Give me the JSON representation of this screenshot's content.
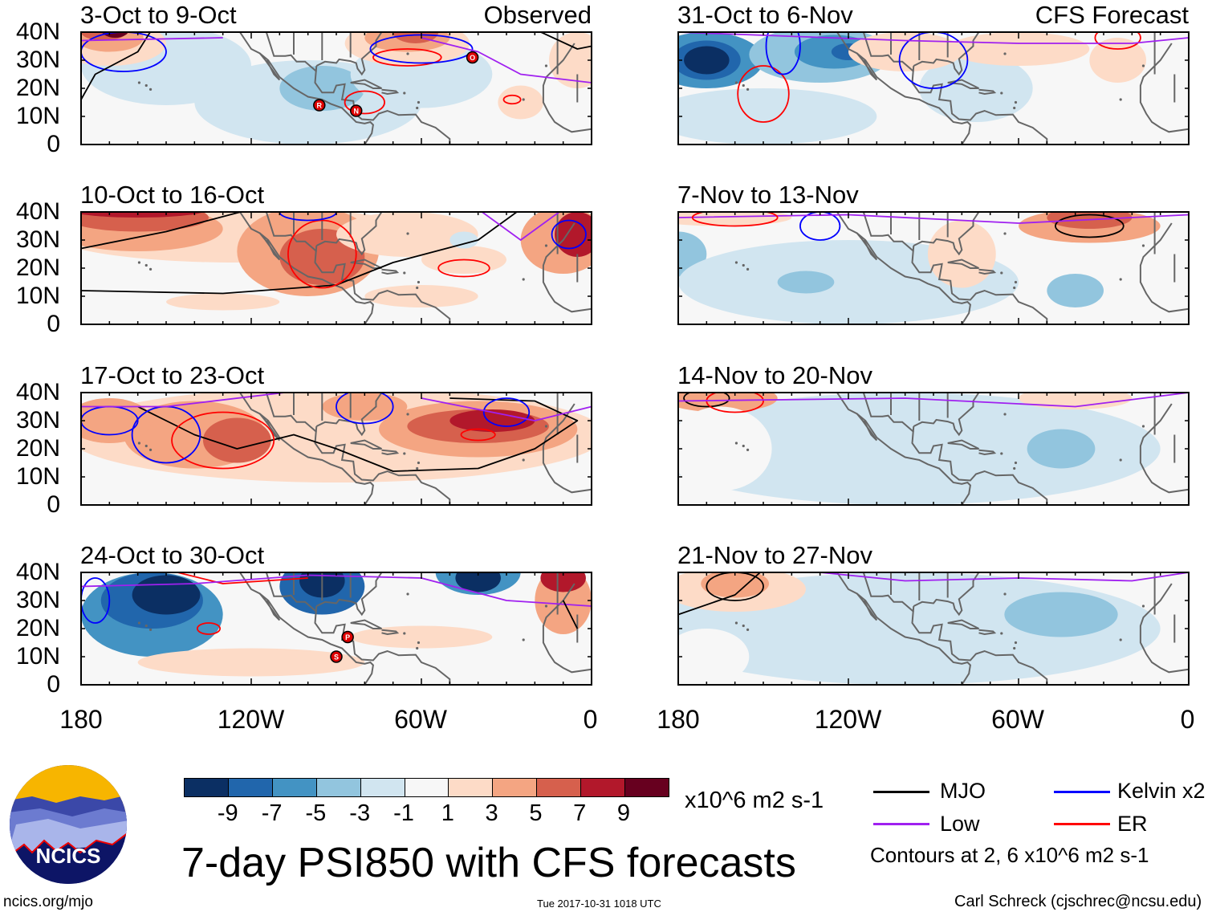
{
  "panels": [
    {
      "title": "3-Oct to 9-Oct",
      "label": "Observed",
      "storms": [
        "R",
        "N",
        "O"
      ]
    },
    {
      "title": "31-Oct to 6-Nov",
      "label": "CFS Forecast",
      "storms": []
    },
    {
      "title": "10-Oct to 16-Oct",
      "label": "",
      "storms": []
    },
    {
      "title": "7-Nov to 13-Nov",
      "label": "",
      "storms": []
    },
    {
      "title": "17-Oct to 23-Oct",
      "label": "",
      "storms": []
    },
    {
      "title": "14-Nov to 20-Nov",
      "label": "",
      "storms": []
    },
    {
      "title": "24-Oct to 30-Oct",
      "label": "",
      "storms": [
        "P",
        "S"
      ]
    },
    {
      "title": "21-Nov to 27-Nov",
      "label": "",
      "storms": []
    }
  ],
  "y_ticks": [
    "40N",
    "30N",
    "20N",
    "10N",
    "0"
  ],
  "x_ticks": [
    "180",
    "120W",
    "60W",
    "0"
  ],
  "colorbar": {
    "colors": [
      "#0b2f63",
      "#2166ac",
      "#4393c3",
      "#92c5de",
      "#d1e5f0",
      "#f7f7f7",
      "#fddbc7",
      "#f4a582",
      "#d6604d",
      "#b2182b",
      "#67001f"
    ],
    "labels": [
      "-9",
      "-7",
      "-5",
      "-3",
      "-1",
      "1",
      "3",
      "5",
      "7",
      "9"
    ],
    "units": "x10^6 m2 s-1"
  },
  "legend": {
    "items": [
      {
        "label": "MJO",
        "color": "#000000"
      },
      {
        "label": "Kelvin x2",
        "color": "#0000ff"
      },
      {
        "label": "Low",
        "color": "#a020f0"
      },
      {
        "label": "ER",
        "color": "#ff0000"
      }
    ],
    "contours_note": "Contours at 2, 6 x10^6 m2 s-1"
  },
  "logo": {
    "text": "NCICS"
  },
  "main_title": "7-day PSI850 with CFS forecasts",
  "website": "ncics.org/mjo",
  "timestamp": "Tue 2017-10-31 1018 UTC",
  "credit": "Carl Schreck (cjschrec@ncsu.edu)"
}
